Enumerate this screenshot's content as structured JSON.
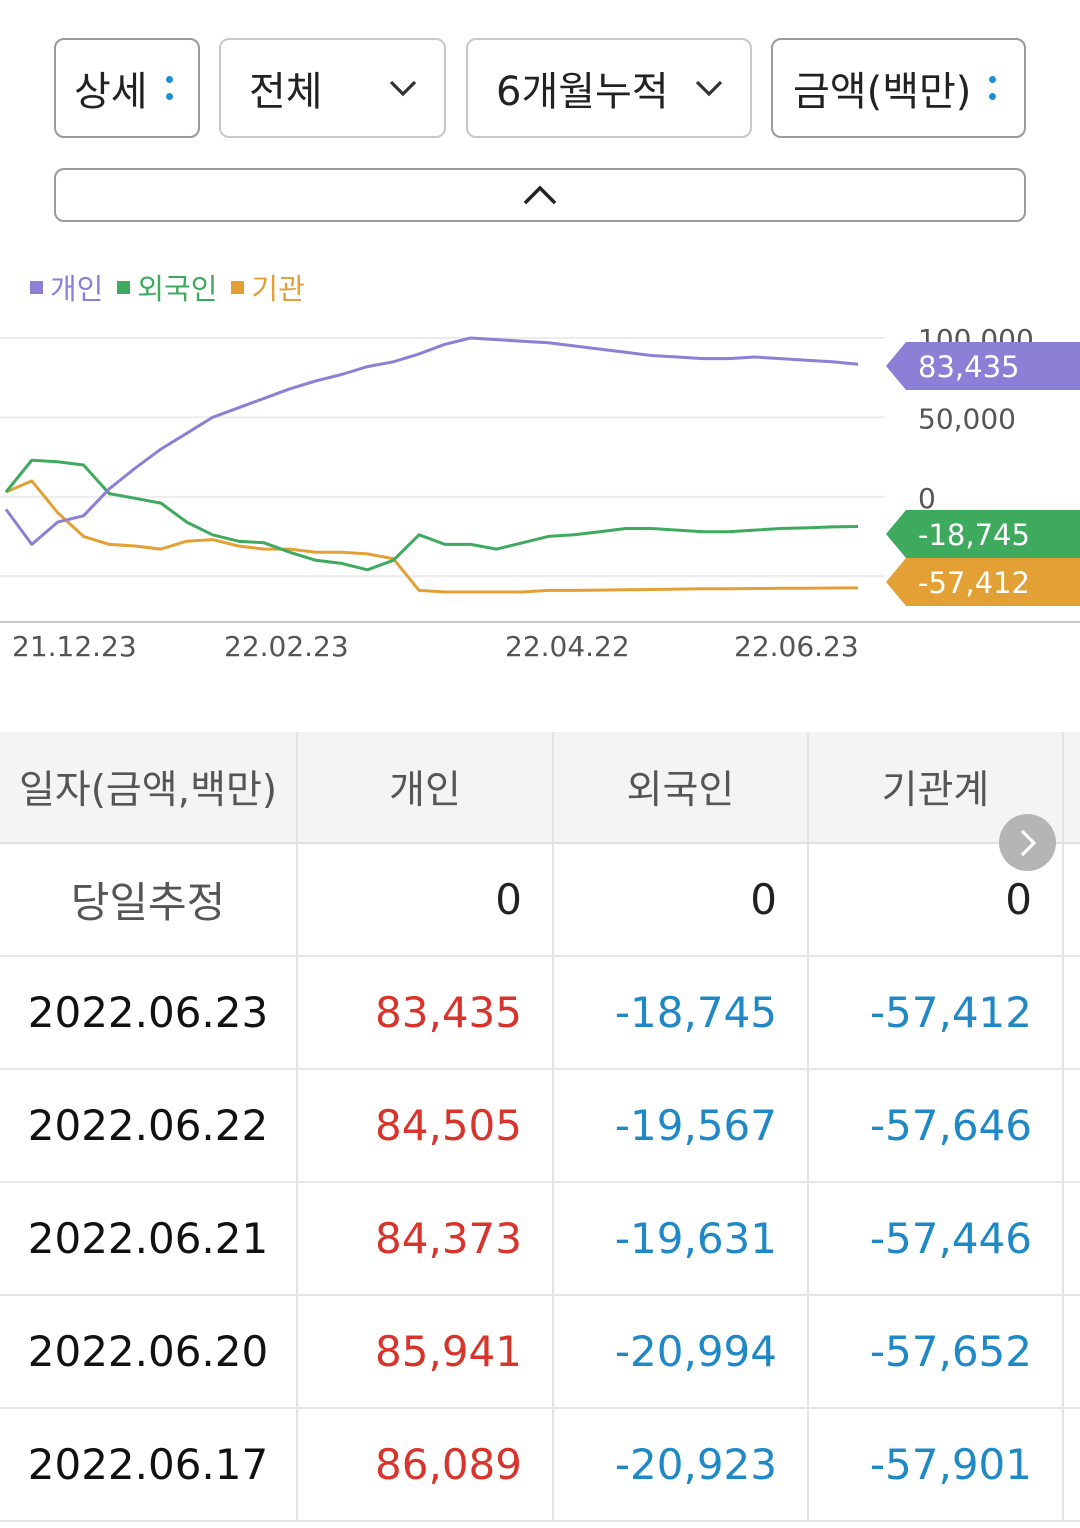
{
  "filters": {
    "detail": "상세",
    "scope": "전체",
    "period": "6개월누적",
    "unit": "금액(백만)"
  },
  "legend": [
    {
      "label": "개인",
      "color": "#8b7fd6"
    },
    {
      "label": "외국인",
      "color": "#3daa5e"
    },
    {
      "label": "기관",
      "color": "#e3a034"
    }
  ],
  "chart_data": {
    "type": "line",
    "x_tick_labels": [
      "21.12.23",
      "22.02.23",
      "22.04.22",
      "22.06.23"
    ],
    "y_tick_labels": [
      "100,000",
      "50,000",
      "0"
    ],
    "ylim": [
      -60000,
      100000
    ],
    "series": [
      {
        "name": "개인",
        "color": "#8b7fd6",
        "last_label": "83,435",
        "values": [
          -8000,
          -30000,
          -16000,
          -12000,
          5000,
          18000,
          30000,
          40000,
          50000,
          56000,
          62000,
          68000,
          73000,
          77000,
          82000,
          85000,
          90000,
          96000,
          100000,
          99000,
          98000,
          97000,
          95000,
          93000,
          91000,
          89000,
          88000,
          87000,
          87000,
          88000,
          87000,
          86000,
          85000,
          83435
        ]
      },
      {
        "name": "외국인",
        "color": "#3daa5e",
        "last_label": "-18,745",
        "values": [
          3000,
          23000,
          22000,
          20000,
          2000,
          -1000,
          -4000,
          -16000,
          -24000,
          -28000,
          -29000,
          -35000,
          -40000,
          -42000,
          -46000,
          -40000,
          -24000,
          -30000,
          -30000,
          -33000,
          -29000,
          -25000,
          -24000,
          -22000,
          -20000,
          -20000,
          -21000,
          -22000,
          -22000,
          -21000,
          -20000,
          -19600,
          -19000,
          -18745
        ]
      },
      {
        "name": "기관",
        "color": "#e3a034",
        "last_label": "-57,412",
        "values": [
          3000,
          10000,
          -10000,
          -25000,
          -30000,
          -31000,
          -33000,
          -28000,
          -27000,
          -31000,
          -33000,
          -33000,
          -35000,
          -35000,
          -36000,
          -39000,
          -59000,
          -60000,
          -60000,
          -60000,
          -60000,
          -59000,
          -59000,
          -58800,
          -58600,
          -58400,
          -58200,
          -58000,
          -57900,
          -57800,
          -57700,
          -57600,
          -57500,
          -57412
        ]
      }
    ]
  },
  "table": {
    "headers": [
      "일자(금액,백만)",
      "개인",
      "외국인",
      "기관계"
    ],
    "estimate_row": {
      "label": "당일추정",
      "individual": "0",
      "foreign": "0",
      "institution": "0"
    },
    "rows": [
      {
        "date": "2022.06.23",
        "individual": "83,435",
        "foreign": "-18,745",
        "institution": "-57,412"
      },
      {
        "date": "2022.06.22",
        "individual": "84,505",
        "foreign": "-19,567",
        "institution": "-57,646"
      },
      {
        "date": "2022.06.21",
        "individual": "84,373",
        "foreign": "-19,631",
        "institution": "-57,446"
      },
      {
        "date": "2022.06.20",
        "individual": "85,941",
        "foreign": "-20,994",
        "institution": "-57,652"
      },
      {
        "date": "2022.06.17",
        "individual": "86,089",
        "foreign": "-20,923",
        "institution": "-57,901"
      }
    ]
  }
}
